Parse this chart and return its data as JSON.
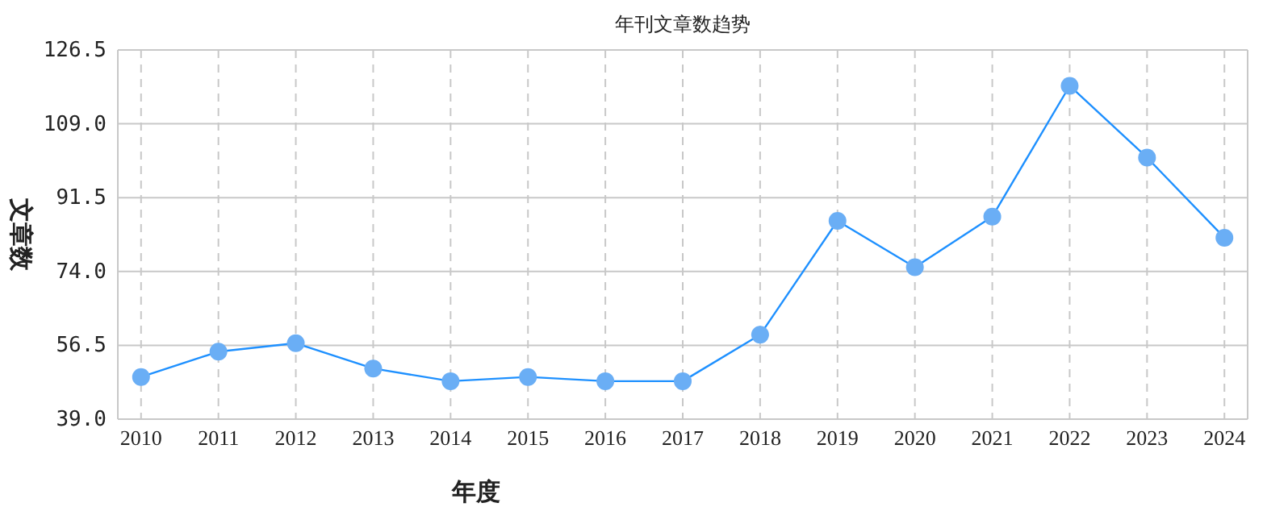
{
  "chart_data": {
    "type": "line",
    "title": "年刊文章数趋势",
    "xlabel": "年度",
    "ylabel": "文章数",
    "categories": [
      "2010",
      "2011",
      "2012",
      "2013",
      "2014",
      "2015",
      "2016",
      "2017",
      "2018",
      "2019",
      "2020",
      "2021",
      "2022",
      "2023",
      "2024"
    ],
    "series": [
      {
        "color": "#1e90ff",
        "values": [
          49,
          55,
          57,
          51,
          48,
          49,
          48,
          48,
          59,
          86,
          75,
          87,
          118,
          101,
          82
        ]
      }
    ],
    "ylim": [
      39,
      126.5
    ],
    "yticks": [
      {
        "value": 39,
        "label": "39.0"
      },
      56.5,
      {
        "value": 74,
        "label": "74.0"
      },
      91.5,
      {
        "value": 109,
        "label": "109.0"
      },
      126.5
    ],
    "grid": true,
    "marker": "circle"
  }
}
